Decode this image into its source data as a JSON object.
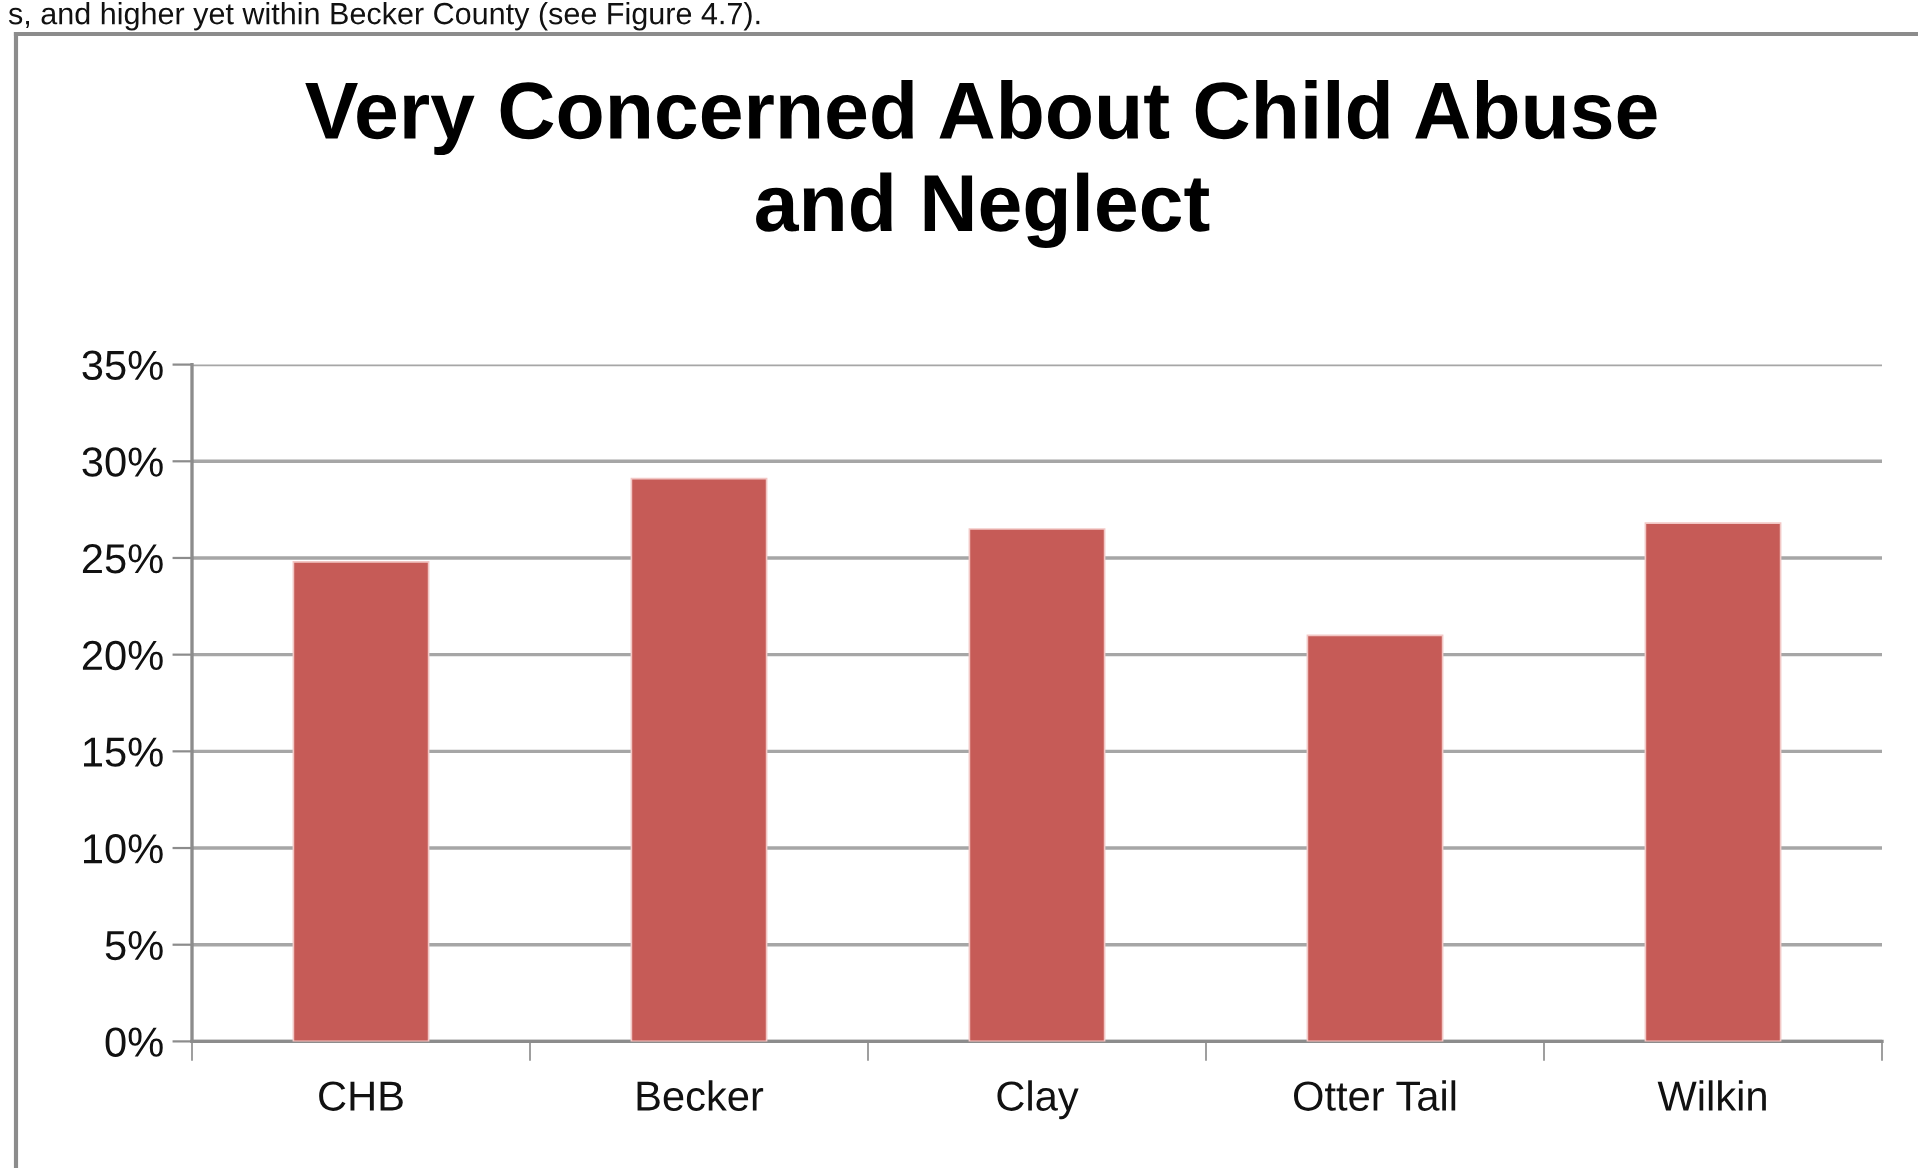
{
  "chart_data": {
    "type": "bar",
    "title": "Very Concerned About Child Abuse\nand Neglect",
    "categories": [
      "CHB",
      "Becker",
      "Clay",
      "Otter Tail",
      "Wilkin"
    ],
    "values": [
      24.8,
      29.1,
      26.5,
      21.0,
      26.8
    ],
    "color": "#c65b57",
    "ylim": [
      0,
      35
    ],
    "yticks": [
      {
        "value": 0,
        "label": "0%"
      },
      {
        "value": 5,
        "label": "5%"
      },
      {
        "value": 10,
        "label": "10%"
      },
      {
        "value": 15,
        "label": "15%"
      },
      {
        "value": 20,
        "label": "20%"
      },
      {
        "value": 25,
        "label": "25%"
      },
      {
        "value": 30,
        "label": "30%"
      },
      {
        "value": 35,
        "label": "35%"
      }
    ],
    "grid": "y",
    "legend": false,
    "annotations": [
      "s, and higher yet within Becker County (see Figure 4.7)."
    ]
  }
}
